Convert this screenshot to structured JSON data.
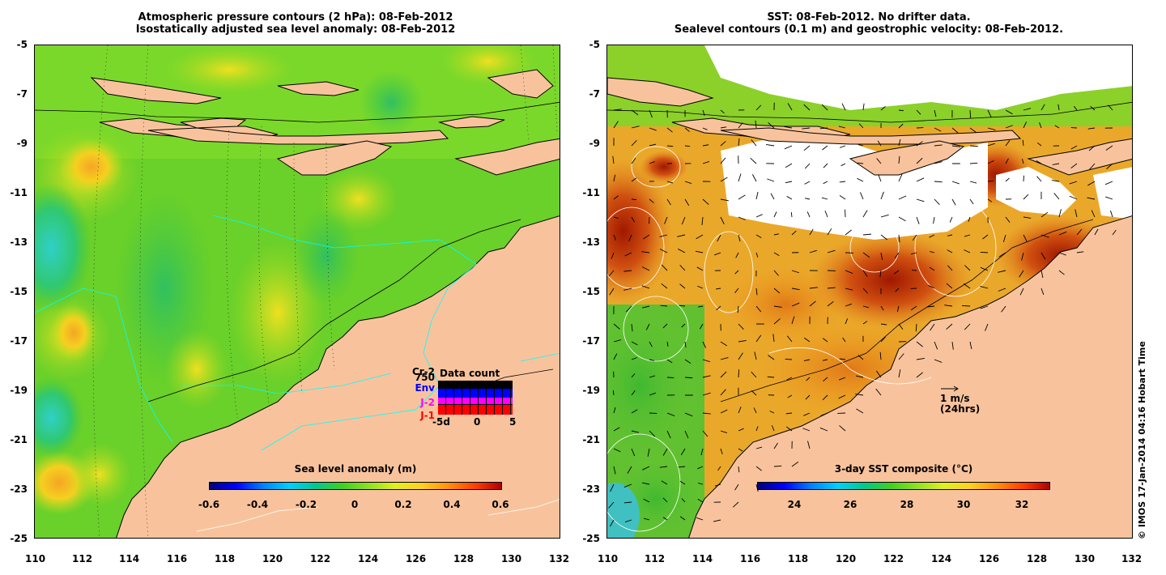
{
  "left_panel": {
    "title_line1": "Atmospheric pressure contours (2 hPa): 08-Feb-2012",
    "title_line2": "Isostatically adjusted sea level anomaly: 08-Feb-2012",
    "x_ticks": [
      "110",
      "112",
      "114",
      "116",
      "118",
      "120",
      "122",
      "124",
      "126",
      "128",
      "130",
      "132"
    ],
    "y_ticks": [
      "-5",
      "-7",
      "-9",
      "-11",
      "-13",
      "-15",
      "-17",
      "-19",
      "-21",
      "-23",
      "-25"
    ],
    "colorbar": {
      "title": "Sea level anomaly (m)",
      "ticks": [
        "-0.6",
        "-0.4",
        "-0.2",
        "0",
        "0.2",
        "0.4",
        "0.6"
      ]
    },
    "legend": {
      "satellites": [
        {
          "label": "Cr-2",
          "color": "#000000"
        },
        {
          "label": "750",
          "color": "#000000"
        },
        {
          "label": "Env",
          "color": "#0000ff"
        },
        {
          "label": "J-2",
          "color": "#ff00ff"
        },
        {
          "label": "J-1",
          "color": "#ff0000"
        }
      ],
      "data_count_title": "Data count",
      "axis_labels": [
        "-5d",
        "0",
        "5"
      ]
    }
  },
  "right_panel": {
    "title_line1": "SST: 08-Feb-2012. No drifter data.",
    "title_line2": "Sealevel contours (0.1 m) and geostrophic velocity: 08-Feb-2012.",
    "x_ticks": [
      "110",
      "112",
      "114",
      "116",
      "118",
      "120",
      "122",
      "124",
      "126",
      "128",
      "130",
      "132"
    ],
    "y_ticks": [
      "-5",
      "-7",
      "-9",
      "-11",
      "-13",
      "-15",
      "-17",
      "-19",
      "-21",
      "-23",
      "-25"
    ],
    "colorbar": {
      "title": "3-day SST composite (°C)",
      "ticks": [
        "24",
        "26",
        "28",
        "30",
        "32"
      ]
    },
    "velocity_scale": {
      "line1": "1 m/s",
      "line2": "(24hrs)"
    }
  },
  "credit": "© IMOS 17-Jan-2014 04:16 Hobart Time",
  "colors": {
    "land": "#f8c39c",
    "ocean_green": "#5fd02c",
    "cloud": "#ffffff"
  }
}
